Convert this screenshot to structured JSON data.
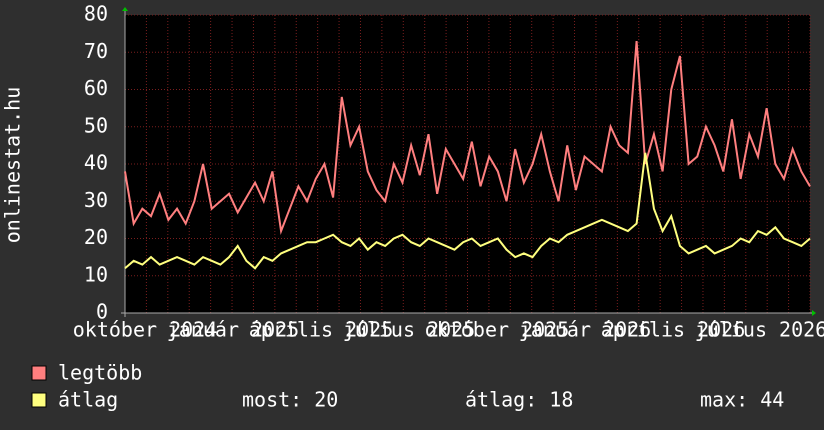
{
  "chart_data": {
    "type": "line",
    "ylabel": "onlinestat.hu",
    "ylim": [
      0,
      80
    ],
    "yticks": [
      0,
      10,
      20,
      30,
      40,
      50,
      60,
      70,
      80
    ],
    "grid": true,
    "xtick_labels": [
      "október 2024",
      "január 2025",
      "április 2025",
      "július 2025",
      "október 2025",
      "január 2026",
      "április 2026",
      "július 2026"
    ],
    "series": [
      {
        "name": "legtöbb",
        "color": "#ff7f7f",
        "values": [
          38,
          24,
          28,
          26,
          32,
          25,
          28,
          24,
          30,
          40,
          28,
          30,
          32,
          27,
          31,
          35,
          30,
          38,
          22,
          28,
          34,
          30,
          36,
          40,
          31,
          58,
          45,
          50,
          38,
          33,
          30,
          40,
          35,
          45,
          37,
          48,
          32,
          44,
          40,
          36,
          46,
          34,
          42,
          38,
          30,
          44,
          35,
          40,
          48,
          38,
          30,
          45,
          33,
          42,
          40,
          38,
          50,
          45,
          43,
          73,
          40,
          48,
          38,
          60,
          69,
          40,
          42,
          50,
          45,
          38,
          52,
          36,
          48,
          42,
          55,
          40,
          36,
          44,
          38,
          34
        ]
      },
      {
        "name": "átlag",
        "color": "#ffff7f",
        "values": [
          12,
          14,
          13,
          15,
          13,
          14,
          15,
          14,
          13,
          15,
          14,
          13,
          15,
          18,
          14,
          12,
          15,
          14,
          16,
          17,
          18,
          19,
          19,
          20,
          21,
          19,
          18,
          20,
          17,
          19,
          18,
          20,
          21,
          19,
          18,
          20,
          19,
          18,
          17,
          19,
          20,
          18,
          19,
          20,
          17,
          15,
          16,
          15,
          18,
          20,
          19,
          21,
          22,
          23,
          24,
          25,
          24,
          23,
          22,
          24,
          43,
          28,
          22,
          26,
          18,
          16,
          17,
          18,
          16,
          17,
          18,
          20,
          19,
          22,
          21,
          23,
          20,
          19,
          18,
          20
        ]
      }
    ],
    "stats": [
      "most: 20",
      "átlag: 18",
      "max: 44"
    ]
  }
}
